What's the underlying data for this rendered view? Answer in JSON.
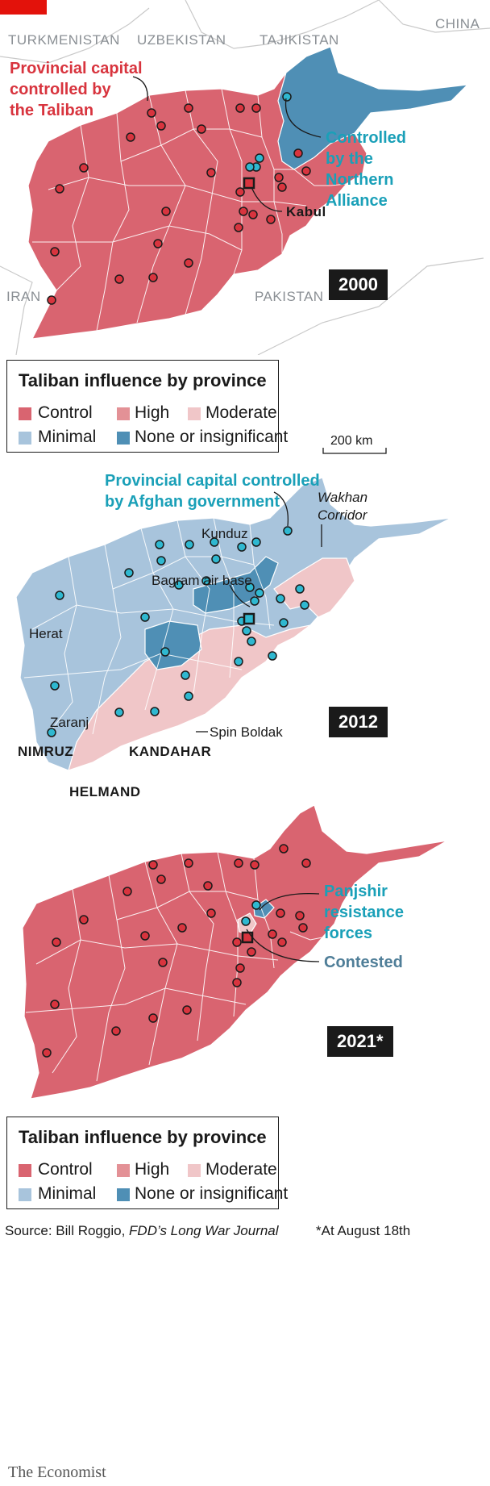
{
  "colors": {
    "control": "#d96470",
    "high": "#e39196",
    "moderate": "#f0c6c8",
    "minimal": "#a8c4dc",
    "none": "#4f8fb5",
    "taliban_dot": "#d8343e",
    "gov_dot": "#2fb8d0",
    "accent_red": "#e3120b"
  },
  "legend_top": {
    "title": "Taliban influence by province",
    "items": [
      {
        "key": "control",
        "label": "Control"
      },
      {
        "key": "high",
        "label": "High"
      },
      {
        "key": "moderate",
        "label": "Moderate"
      },
      {
        "key": "minimal",
        "label": "Minimal"
      },
      {
        "key": "none",
        "label": "None or insignificant"
      }
    ]
  },
  "legend_bottom": {
    "title": "Taliban influence by province",
    "items": [
      {
        "key": "control",
        "label": "Control"
      },
      {
        "key": "high",
        "label": "High"
      },
      {
        "key": "moderate",
        "label": "Moderate"
      },
      {
        "key": "minimal",
        "label": "Minimal"
      },
      {
        "key": "none",
        "label": "None or insignificant"
      }
    ]
  },
  "scale_label": "200 km",
  "map2000": {
    "year": "2000",
    "countries": {
      "turkmenistan": "TURKMENISTAN",
      "uzbekistan": "UZBEKISTAN",
      "tajikistan": "TAJIKISTAN",
      "china": "CHINA",
      "iran": "IRAN",
      "pakistan": "PAKISTAN"
    },
    "callout_taliban": [
      "Provincial capital",
      "controlled by",
      "the Taliban"
    ],
    "callout_na": [
      "Controlled",
      "by the",
      "Northern",
      "Alliance"
    ],
    "kabul": "Kabul"
  },
  "map2012": {
    "year": "2012",
    "callout_gov": [
      "Provincial capital controlled",
      "by Afghan government"
    ],
    "wakhan": [
      "Wakhan",
      "Corridor"
    ],
    "kunduz": "Kunduz",
    "bagram": "Bagram air base",
    "herat": "Herat",
    "zaranj": "Zaranj",
    "spin_boldak": "Spin Boldak",
    "nimruz": "NIMRUZ",
    "kandahar": "KANDAHAR",
    "helmand": "HELMAND"
  },
  "map2021": {
    "year": "2021*",
    "callout_panjshir": [
      "Panjshir",
      "resistance",
      "forces"
    ],
    "contested": "Contested"
  },
  "footer": {
    "source_prefix": "Source: Bill Roggio, ",
    "source_italic": "FDD’s Long War Journal",
    "note": "*At August 18th",
    "brand": "The Economist"
  }
}
